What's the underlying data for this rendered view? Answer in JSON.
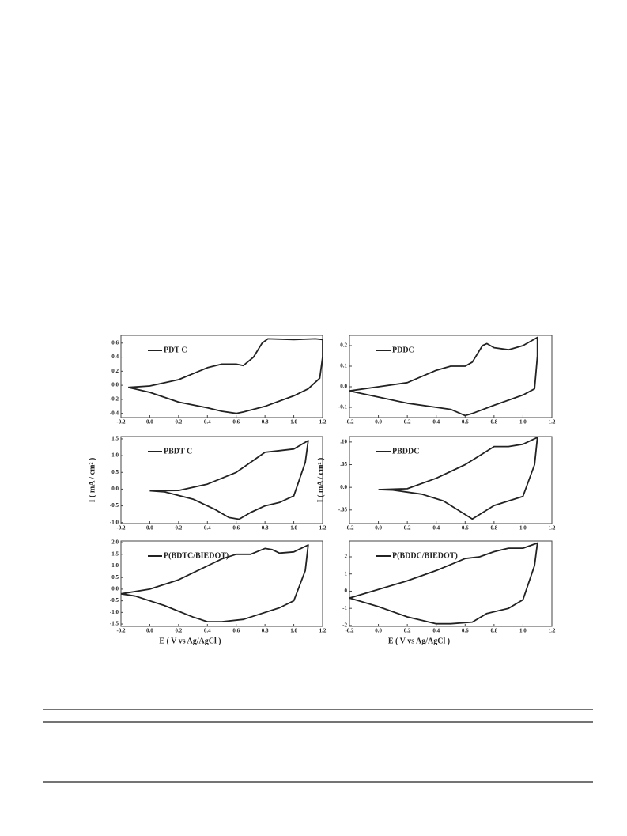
{
  "chart_data": [
    {
      "type": "line",
      "xlim": [
        -0.2,
        1.2
      ],
      "ylim": [
        -0.46,
        0.71
      ],
      "xticks": [
        -0.2,
        {
          "value": 0,
          "label": "0.0"
        },
        0.2,
        0.4,
        0.6,
        0.8,
        {
          "value": 1,
          "label": "1.0"
        },
        1.2
      ],
      "yticks": [
        -0.4,
        -0.2,
        {
          "value": 0,
          "label": "0.0"
        },
        0.2,
        0.4,
        0.6
      ],
      "x": [
        -0.15,
        0,
        0.2,
        0.4,
        0.5,
        0.6,
        0.65,
        0.72,
        0.78,
        0.82,
        1.0,
        1.15,
        1.2,
        1.2,
        1.18,
        1.1,
        1.0,
        0.8,
        0.65,
        0.6,
        0.5,
        0.4,
        0.2,
        0,
        -0.15
      ],
      "series": [
        {
          "name": "PDT C",
          "color": "#222222",
          "values": [
            -0.03,
            -0.01,
            0.08,
            0.25,
            0.3,
            0.3,
            0.28,
            0.4,
            0.6,
            0.66,
            0.65,
            0.66,
            0.65,
            0.4,
            0.1,
            -0.05,
            -0.15,
            -0.3,
            -0.38,
            -0.4,
            -0.37,
            -0.32,
            -0.24,
            -0.1,
            -0.03
          ]
        }
      ]
    },
    {
      "type": "line",
      "xlim": [
        -0.2,
        1.2
      ],
      "ylim": [
        -0.15,
        0.25
      ],
      "xticks": [
        -0.2,
        {
          "value": 0,
          "label": "0.0"
        },
        0.2,
        0.4,
        0.6,
        0.8,
        {
          "value": 1,
          "label": "1.0"
        },
        1.2
      ],
      "yticks": [
        -0.1,
        {
          "value": 0,
          "label": "0.0"
        },
        0.1,
        0.2
      ],
      "x": [
        -0.2,
        0,
        0.2,
        0.4,
        0.5,
        0.6,
        0.65,
        0.72,
        0.75,
        0.8,
        0.9,
        1.0,
        1.1,
        1.1,
        1.08,
        1.0,
        0.8,
        0.65,
        0.6,
        0.5,
        0.4,
        0.2,
        0,
        -0.2
      ],
      "series": [
        {
          "name": "PDDC",
          "color": "#222222",
          "values": [
            -0.02,
            0,
            0.02,
            0.08,
            0.1,
            0.1,
            0.12,
            0.2,
            0.21,
            0.19,
            0.18,
            0.2,
            0.24,
            0.15,
            -0.01,
            -0.04,
            -0.09,
            -0.13,
            -0.14,
            -0.11,
            -0.1,
            -0.08,
            -0.05,
            -0.02
          ]
        }
      ]
    },
    {
      "type": "line",
      "xlim": [
        -0.2,
        1.2
      ],
      "ylim": [
        -1.03,
        1.57
      ],
      "ylabel": "I ( mA / cm² )",
      "xticks": [
        -0.2,
        {
          "value": 0,
          "label": "0.0"
        },
        0.2,
        0.4,
        0.6,
        0.8,
        {
          "value": 1,
          "label": "1.0"
        },
        1.2
      ],
      "yticks": [
        {
          "value": -1,
          "label": "-1.0"
        },
        -0.5,
        {
          "value": 0,
          "label": "0.0"
        },
        0.5,
        {
          "value": 1,
          "label": "1.0"
        },
        1.5
      ],
      "x": [
        0,
        0.2,
        0.4,
        0.6,
        0.7,
        0.8,
        0.9,
        1.0,
        1.1,
        1.08,
        1.0,
        0.9,
        0.8,
        0.7,
        0.62,
        0.55,
        0.45,
        0.3,
        0.1,
        0
      ],
      "series": [
        {
          "name": "PBDT C",
          "color": "#222222",
          "values": [
            -0.05,
            -0.04,
            0.15,
            0.5,
            0.8,
            1.1,
            1.15,
            1.2,
            1.45,
            0.8,
            -0.2,
            -0.4,
            -0.5,
            -0.7,
            -0.9,
            -0.85,
            -0.6,
            -0.3,
            -0.08,
            -0.05
          ]
        }
      ]
    },
    {
      "type": "line",
      "xlim": [
        -0.2,
        1.2
      ],
      "ylim": [
        -0.08,
        0.112
      ],
      "ylabel": "I ( mA / cm² )",
      "xticks": [
        -0.2,
        {
          "value": 0,
          "label": "0.0"
        },
        0.2,
        0.4,
        0.6,
        0.8,
        {
          "value": 1,
          "label": "1.0"
        },
        1.2
      ],
      "yticks": [
        {
          "value": -0.05,
          "label": "-.05"
        },
        {
          "value": 0,
          "label": "0.0"
        },
        {
          "value": 0.05,
          "label": ".05"
        },
        {
          "value": 0.1,
          "label": ".10"
        }
      ],
      "x": [
        0,
        0.2,
        0.4,
        0.6,
        0.7,
        0.8,
        0.9,
        1.0,
        1.1,
        1.08,
        1.0,
        0.9,
        0.8,
        0.7,
        0.65,
        0.55,
        0.45,
        0.3,
        0.1,
        0
      ],
      "series": [
        {
          "name": "PBDDC",
          "color": "#222222",
          "values": [
            -0.005,
            -0.003,
            0.02,
            0.05,
            0.07,
            0.09,
            0.09,
            0.095,
            0.11,
            0.05,
            -0.02,
            -0.03,
            -0.04,
            -0.06,
            -0.07,
            -0.05,
            -0.03,
            -0.015,
            -0.006,
            -0.005
          ]
        }
      ]
    },
    {
      "type": "line",
      "xlim": [
        -0.2,
        1.2
      ],
      "ylim": [
        -1.6,
        2.07
      ],
      "xlabel": "E  ( V vs Ag/AgCl )",
      "xticks": [
        -0.2,
        {
          "value": 0,
          "label": "0.0"
        },
        0.2,
        0.4,
        0.6,
        0.8,
        {
          "value": 1,
          "label": "1.0"
        },
        1.2
      ],
      "yticks": [
        -1.5,
        {
          "value": -1,
          "label": "-1.0"
        },
        -0.5,
        {
          "value": 0,
          "label": "0.0"
        },
        0.5,
        {
          "value": 1,
          "label": "1.0"
        },
        1.5,
        {
          "value": 2,
          "label": "2.0"
        }
      ],
      "x": [
        -0.2,
        0,
        0.2,
        0.4,
        0.5,
        0.6,
        0.7,
        0.8,
        0.85,
        0.9,
        1.0,
        1.1,
        1.08,
        1.0,
        0.9,
        0.75,
        0.65,
        0.5,
        0.4,
        0.3,
        0.1,
        -0.1,
        -0.2
      ],
      "series": [
        {
          "name": "P(BDTC/BIEDOT)",
          "color": "#222222",
          "values": [
            -0.2,
            0,
            0.4,
            1.0,
            1.3,
            1.5,
            1.5,
            1.75,
            1.7,
            1.55,
            1.6,
            1.9,
            0.8,
            -0.5,
            -0.8,
            -1.1,
            -1.3,
            -1.4,
            -1.4,
            -1.2,
            -0.7,
            -0.3,
            -0.2
          ]
        }
      ]
    },
    {
      "type": "line",
      "xlim": [
        -0.2,
        1.2
      ],
      "ylim": [
        -2.05,
        2.92
      ],
      "xlabel": "E  ( V vs Ag/AgCl )",
      "xticks": [
        -0.2,
        {
          "value": 0,
          "label": "0.0"
        },
        0.2,
        0.4,
        0.6,
        0.8,
        {
          "value": 1,
          "label": "1.0"
        },
        1.2
      ],
      "yticks": [
        -2,
        -1,
        0,
        1,
        2
      ],
      "x": [
        -0.2,
        0,
        0.2,
        0.4,
        0.6,
        0.7,
        0.8,
        0.9,
        1.0,
        1.1,
        1.08,
        1.0,
        0.9,
        0.75,
        0.65,
        0.5,
        0.4,
        0.2,
        0,
        -0.2
      ],
      "series": [
        {
          "name": "P(BDDC/BIEDOT)",
          "color": "#222222",
          "values": [
            -0.4,
            0.1,
            0.6,
            1.2,
            1.9,
            2.0,
            2.3,
            2.5,
            2.5,
            2.8,
            1.5,
            -0.5,
            -1.0,
            -1.3,
            -1.8,
            -1.9,
            -1.9,
            -1.5,
            -0.9,
            -0.4
          ]
        }
      ]
    }
  ]
}
